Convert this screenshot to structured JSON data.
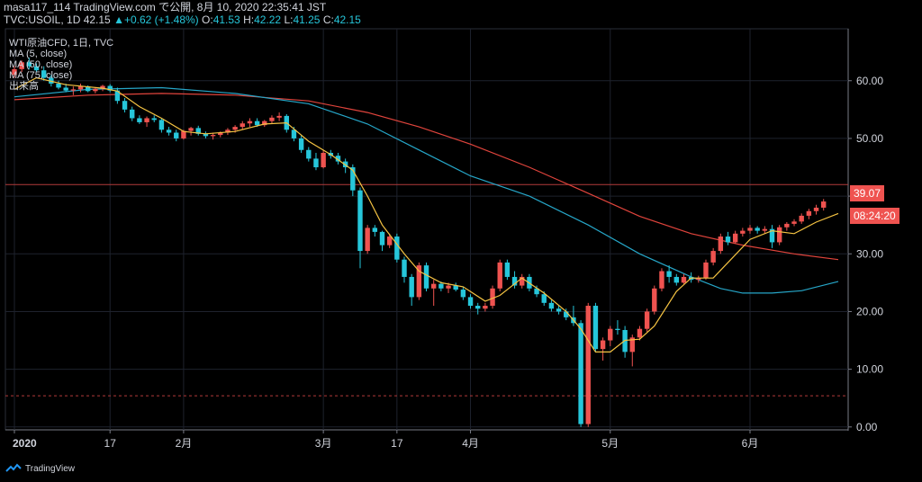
{
  "header": {
    "line1": "masa117_114 TradingView.com で公開, 8月 10, 2020 22:35:41 JST",
    "line2_prefix": "TVC:USOIL, 1D 42.15",
    "change": "▲+0.62 (+1.48%)",
    "o_label": "O:",
    "o": "41.53",
    "h_label": "H:",
    "h": "42.22",
    "l_label": "L:",
    "l": "41.25",
    "c_label": "C:",
    "c": "42.15"
  },
  "legend": [
    "WTI原油CFD, 1日, TVC",
    "MA (5, close)",
    "MA (50, close)",
    "MA (75, close)",
    "出来高"
  ],
  "price_tag": "39.07",
  "countdown_tag": "08:24:20",
  "footer": {
    "brand": "TradingView"
  },
  "colors": {
    "up": "#ef5350",
    "down": "#26c6da",
    "ma5": "#f5c342",
    "ma50": "#26a6c8",
    "ma75": "#e0443c"
  },
  "chart_data": {
    "type": "candlestick",
    "y_ticks": [
      "60.00",
      "50.00",
      "40.00",
      "30.00",
      "20.00",
      "10.00",
      "0.00"
    ],
    "ylim": [
      -0.5,
      69
    ],
    "x_ticks": [
      "2020",
      "17",
      "2月",
      "3月",
      "17",
      "4月",
      "5月",
      "6月"
    ],
    "x_tick_index": [
      0,
      13,
      23,
      42,
      52,
      62,
      81,
      100
    ],
    "horizontal_lines": [
      {
        "value": 42.0,
        "color": "#b33a3a"
      },
      {
        "value": 5.4,
        "color": "#b33a3a",
        "style": "dashed"
      }
    ],
    "candles": [
      [
        61.0,
        62.5,
        60.5,
        62.0
      ],
      [
        62.0,
        63.5,
        61.5,
        63.2
      ],
      [
        63.2,
        64.0,
        62.0,
        62.5
      ],
      [
        62.5,
        63.0,
        61.5,
        61.8
      ],
      [
        61.8,
        62.5,
        60.0,
        60.5
      ],
      [
        60.5,
        61.0,
        59.0,
        59.5
      ],
      [
        59.5,
        60.0,
        58.5,
        58.8
      ],
      [
        58.8,
        59.5,
        58.0,
        58.3
      ],
      [
        58.3,
        59.0,
        57.5,
        58.5
      ],
      [
        58.5,
        59.5,
        58.0,
        59.0
      ],
      [
        59.0,
        59.2,
        58.0,
        58.2
      ],
      [
        58.2,
        58.8,
        57.8,
        58.6
      ],
      [
        58.6,
        59.3,
        58.2,
        59.1
      ],
      [
        59.1,
        59.4,
        58.0,
        58.3
      ],
      [
        58.3,
        58.8,
        56.0,
        56.5
      ],
      [
        56.5,
        57.0,
        54.5,
        55.0
      ],
      [
        55.0,
        55.5,
        53.0,
        53.5
      ],
      [
        53.5,
        54.0,
        52.5,
        52.8
      ],
      [
        52.8,
        53.8,
        52.0,
        53.5
      ],
      [
        53.5,
        54.0,
        52.8,
        53.2
      ],
      [
        53.2,
        53.5,
        51.0,
        51.5
      ],
      [
        51.5,
        52.0,
        50.5,
        51.0
      ],
      [
        51.0,
        51.5,
        49.5,
        50.0
      ],
      [
        50.0,
        51.5,
        49.8,
        51.3
      ],
      [
        51.3,
        52.0,
        50.5,
        51.8
      ],
      [
        51.8,
        52.2,
        50.5,
        50.8
      ],
      [
        50.8,
        51.2,
        50.0,
        50.4
      ],
      [
        50.4,
        51.0,
        49.8,
        50.6
      ],
      [
        50.6,
        51.2,
        50.2,
        51.0
      ],
      [
        51.0,
        51.8,
        50.6,
        51.5
      ],
      [
        51.5,
        52.3,
        51.0,
        52.0
      ],
      [
        52.0,
        53.0,
        51.5,
        52.6
      ],
      [
        52.6,
        53.5,
        52.0,
        53.0
      ],
      [
        53.0,
        53.5,
        52.0,
        52.3
      ],
      [
        52.3,
        53.2,
        52.0,
        53.0
      ],
      [
        53.0,
        54.0,
        52.5,
        53.6
      ],
      [
        53.6,
        54.5,
        53.0,
        53.9
      ],
      [
        53.9,
        54.2,
        51.0,
        51.5
      ],
      [
        51.5,
        52.0,
        49.5,
        50.0
      ],
      [
        50.0,
        50.5,
        47.5,
        48.0
      ],
      [
        48.0,
        48.5,
        46.0,
        46.5
      ],
      [
        46.5,
        47.5,
        44.5,
        45.0
      ],
      [
        45.0,
        48.0,
        44.8,
        47.5
      ],
      [
        47.5,
        48.0,
        46.5,
        47.0
      ],
      [
        47.0,
        47.5,
        45.5,
        46.0
      ],
      [
        46.0,
        46.5,
        44.0,
        45.0
      ],
      [
        45.0,
        45.5,
        40.0,
        41.0
      ],
      [
        41.0,
        41.5,
        27.5,
        30.5
      ],
      [
        30.5,
        35.0,
        30.0,
        34.5
      ],
      [
        34.5,
        35.0,
        33.0,
        33.8
      ],
      [
        33.8,
        34.0,
        30.5,
        31.5
      ],
      [
        31.5,
        33.5,
        31.0,
        33.0
      ],
      [
        33.0,
        33.5,
        28.5,
        29.0
      ],
      [
        29.0,
        29.5,
        25.0,
        26.0
      ],
      [
        26.0,
        26.5,
        21.0,
        22.5
      ],
      [
        22.5,
        28.5,
        22.0,
        28.0
      ],
      [
        28.0,
        28.5,
        23.5,
        24.0
      ],
      [
        24.0,
        25.5,
        21.0,
        24.8
      ],
      [
        24.8,
        25.2,
        23.5,
        24.0
      ],
      [
        24.0,
        25.0,
        23.2,
        24.5
      ],
      [
        24.5,
        25.0,
        23.5,
        23.8
      ],
      [
        23.8,
        24.2,
        22.0,
        22.5
      ],
      [
        22.5,
        23.0,
        20.5,
        21.0
      ],
      [
        21.0,
        21.5,
        19.5,
        20.5
      ],
      [
        20.5,
        21.5,
        20.0,
        21.0
      ],
      [
        21.0,
        24.5,
        20.5,
        24.0
      ],
      [
        24.0,
        29.0,
        23.5,
        28.5
      ],
      [
        28.5,
        29.0,
        25.5,
        26.0
      ],
      [
        26.0,
        27.0,
        24.0,
        24.5
      ],
      [
        24.5,
        26.5,
        24.0,
        26.0
      ],
      [
        26.0,
        26.5,
        23.5,
        24.0
      ],
      [
        24.0,
        24.5,
        22.5,
        23.0
      ],
      [
        23.0,
        23.5,
        21.0,
        21.5
      ],
      [
        21.5,
        22.0,
        20.0,
        20.5
      ],
      [
        20.5,
        21.0,
        19.5,
        20.0
      ],
      [
        20.0,
        20.5,
        18.5,
        19.0
      ],
      [
        19.0,
        21.0,
        17.5,
        18.0
      ],
      [
        18.0,
        18.5,
        0.0,
        0.5
      ],
      [
        0.5,
        21.5,
        0.0,
        21.0
      ],
      [
        21.0,
        21.5,
        13.0,
        13.5
      ],
      [
        13.5,
        15.5,
        11.5,
        15.0
      ],
      [
        15.0,
        17.5,
        14.0,
        17.0
      ],
      [
        17.0,
        18.5,
        16.0,
        16.8
      ],
      [
        16.8,
        17.5,
        12.0,
        13.0
      ],
      [
        13.0,
        16.0,
        10.5,
        15.5
      ],
      [
        15.5,
        17.5,
        15.0,
        17.0
      ],
      [
        17.0,
        20.5,
        16.5,
        20.0
      ],
      [
        20.0,
        24.5,
        19.5,
        24.0
      ],
      [
        24.0,
        27.5,
        23.5,
        27.0
      ],
      [
        27.0,
        28.0,
        25.0,
        26.0
      ],
      [
        26.0,
        26.5,
        24.5,
        25.0
      ],
      [
        25.0,
        26.5,
        24.8,
        26.0
      ],
      [
        26.0,
        26.8,
        25.0,
        25.5
      ],
      [
        25.5,
        26.2,
        25.0,
        25.8
      ],
      [
        25.8,
        29.0,
        25.5,
        28.5
      ],
      [
        28.5,
        31.0,
        28.0,
        30.5
      ],
      [
        30.5,
        33.5,
        30.0,
        33.0
      ],
      [
        33.0,
        33.8,
        31.5,
        32.0
      ],
      [
        32.0,
        34.0,
        31.8,
        33.5
      ],
      [
        33.5,
        34.5,
        33.0,
        34.0
      ],
      [
        34.0,
        35.0,
        33.5,
        34.5
      ],
      [
        34.5,
        34.8,
        33.5,
        34.0
      ],
      [
        34.0,
        34.8,
        33.5,
        34.3
      ],
      [
        34.3,
        35.0,
        31.0,
        32.0
      ],
      [
        32.0,
        35.0,
        31.5,
        34.6
      ],
      [
        34.6,
        35.5,
        34.0,
        35.2
      ],
      [
        35.2,
        36.0,
        34.8,
        35.6
      ],
      [
        35.6,
        37.0,
        35.2,
        36.6
      ],
      [
        36.6,
        37.8,
        36.0,
        37.4
      ],
      [
        37.4,
        38.5,
        36.8,
        38.0
      ],
      [
        38.0,
        39.5,
        37.5,
        39.07
      ]
    ],
    "ma5": [
      [
        0,
        58.5
      ],
      [
        3,
        60.5
      ],
      [
        7,
        59.3
      ],
      [
        12,
        58.7
      ],
      [
        14,
        58.2
      ],
      [
        17,
        55.5
      ],
      [
        20,
        53.5
      ],
      [
        23,
        51.2
      ],
      [
        26,
        50.8
      ],
      [
        30,
        51.2
      ],
      [
        34,
        52.5
      ],
      [
        37,
        52.7
      ],
      [
        40,
        49.5
      ],
      [
        43,
        47.2
      ],
      [
        46,
        44.5
      ],
      [
        48,
        40.0
      ],
      [
        50,
        35.0
      ],
      [
        53,
        30.0
      ],
      [
        55,
        27.0
      ],
      [
        58,
        25.0
      ],
      [
        61,
        24.3
      ],
      [
        64,
        21.8
      ],
      [
        66,
        22.8
      ],
      [
        69,
        25.8
      ],
      [
        72,
        23.2
      ],
      [
        75,
        20.0
      ],
      [
        77,
        17.0
      ],
      [
        79,
        13.0
      ],
      [
        81,
        13.0
      ],
      [
        83,
        15.0
      ],
      [
        85,
        15.2
      ],
      [
        87,
        17.5
      ],
      [
        90,
        23.5
      ],
      [
        92,
        25.8
      ],
      [
        95,
        25.8
      ],
      [
        97,
        28.5
      ],
      [
        100,
        32.5
      ],
      [
        103,
        34.0
      ],
      [
        106,
        33.5
      ],
      [
        109,
        35.5
      ],
      [
        112,
        37.0
      ]
    ],
    "ma50": [
      [
        0,
        57.2
      ],
      [
        10,
        58.5
      ],
      [
        20,
        58.8
      ],
      [
        30,
        57.8
      ],
      [
        40,
        56.0
      ],
      [
        48,
        52.5
      ],
      [
        55,
        48.0
      ],
      [
        62,
        43.5
      ],
      [
        70,
        40.0
      ],
      [
        78,
        35.0
      ],
      [
        85,
        30.0
      ],
      [
        92,
        26.0
      ],
      [
        96,
        24.0
      ],
      [
        99,
        23.2
      ],
      [
        103,
        23.2
      ],
      [
        107,
        23.6
      ],
      [
        112,
        25.2
      ]
    ],
    "ma75": [
      [
        0,
        56.7
      ],
      [
        10,
        57.5
      ],
      [
        20,
        57.8
      ],
      [
        30,
        57.5
      ],
      [
        40,
        56.5
      ],
      [
        48,
        54.5
      ],
      [
        55,
        52.0
      ],
      [
        62,
        49.0
      ],
      [
        70,
        45.0
      ],
      [
        78,
        40.5
      ],
      [
        85,
        36.5
      ],
      [
        92,
        33.5
      ],
      [
        99,
        31.5
      ],
      [
        106,
        30.0
      ],
      [
        112,
        29.0
      ]
    ]
  }
}
